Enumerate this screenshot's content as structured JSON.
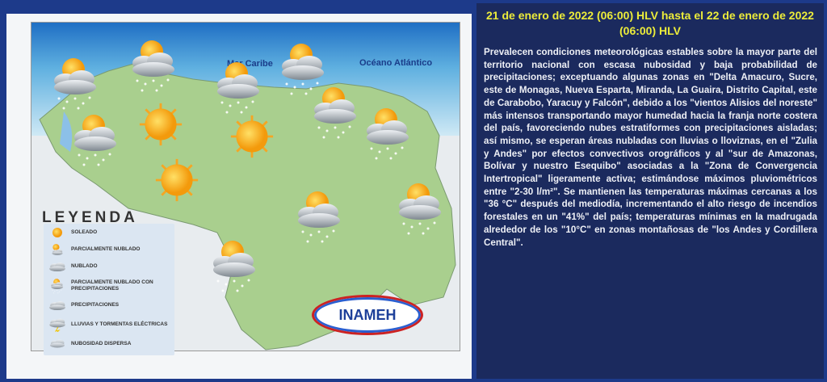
{
  "map": {
    "labels": {
      "sea": "Mar Caribe",
      "ocean": "Océano Atlántico"
    },
    "legend": {
      "title": "LEYENDA",
      "items": [
        {
          "icon": "sun-icon",
          "label": "SOLEADO"
        },
        {
          "icon": "partly-cloudy-icon",
          "label": "PARCIALMENTE NUBLADO"
        },
        {
          "icon": "cloud-icon",
          "label": "NUBLADO"
        },
        {
          "icon": "partly-cloudy-rain-icon",
          "label": "PARCIALMENTE NUBLADO CON PRECIPITACIONES"
        },
        {
          "icon": "rain-icon",
          "label": "PRECIPITACIONES"
        },
        {
          "icon": "thunderstorm-icon",
          "label": "LLUVIAS Y TORMENTAS ELÉCTRICAS"
        },
        {
          "icon": "scattered-clouds-icon",
          "label": "NUBOSIDAD DISPERSA"
        }
      ]
    },
    "logo": "INAMEH",
    "colors": {
      "land": "#a9cf8e",
      "sea": "#5fb0e0",
      "deep_sea": "#1f6fc4",
      "background": "#1d3a8a",
      "text_panel": "#1b2a5e",
      "title": "#ecec3a"
    }
  },
  "forecast": {
    "title": "21 de enero de 2022 (06:00) HLV hasta el 22 de enero de 2022 (06:00) HLV",
    "body": "Prevalecen condiciones meteorológicas estables sobre la mayor parte del territorio nacional con escasa nubosidad y baja probabilidad de precipitaciones; exceptuando algunas zonas en \"Delta Amacuro, Sucre, este de Monagas, Nueva Esparta, Miranda, La Guaira, Distrito Capital, este de Carabobo, Yaracuy y Falcón\", debido a los \"vientos Alisios del noreste\" más intensos transportando mayor humedad hacia la franja norte costera del país, favoreciendo nubes estratiformes con precipitaciones aisladas; así mismo, se esperan áreas nubladas con lluvias o lloviznas, en el \"Zulia y Andes\" por efectos convectivos orográficos y al \"sur de Amazonas, Bolívar y nuestro Esequibo\" asociadas a la \"Zona de Convergencia Intertropical\" ligeramente activa; estimándose máximos pluviométricos entre \"2-30 l/m²\". Se mantienen las temperaturas máximas cercanas a los \"36 °C\" después del mediodía, incrementando el alto riesgo de incendios forestales en un \"41%\" del país; temperaturas mínimas en la madrugada alrededor de los \"10°C\" en zonas montañosas de \"los Andes y Cordillera Central\"."
  }
}
